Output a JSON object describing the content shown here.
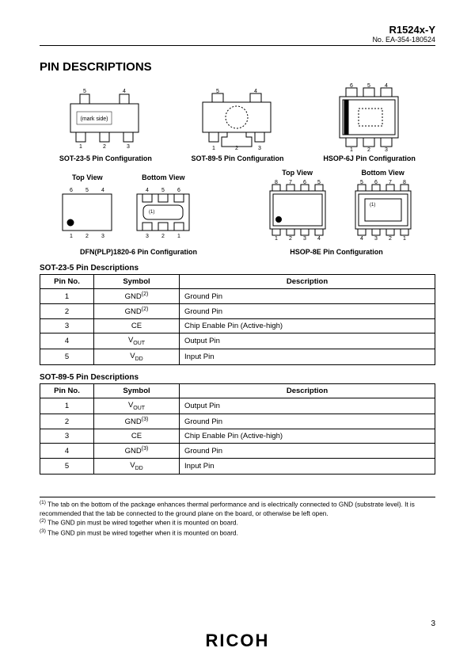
{
  "header": {
    "title": "R1524x-Y",
    "sub": "No. EA-354-180524"
  },
  "section_title": "PIN DESCRIPTIONS",
  "diag": {
    "sot235": {
      "caption": "SOT-23-5 Pin Configuration",
      "mark": "(mark side)",
      "top": [
        "5",
        "4"
      ],
      "bot": [
        "1",
        "2",
        "3"
      ]
    },
    "sot895": {
      "caption": "SOT-89-5 Pin Configuration",
      "top": [
        "5",
        "4"
      ],
      "bot": [
        "1",
        "2",
        "3"
      ]
    },
    "hsop6j": {
      "caption": "HSOP-6J Pin Configuration",
      "top": [
        "6",
        "5",
        "4"
      ],
      "bot": [
        "1",
        "2",
        "3"
      ]
    },
    "dfn": {
      "caption": "DFN(PLP)1820-6 Pin Configuration",
      "top_view": "Top View",
      "bottom_view": "Bottom View",
      "top_top": [
        "6",
        "5",
        "4"
      ],
      "top_bot": [
        "1",
        "2",
        "3"
      ],
      "btm_top": [
        "4",
        "5",
        "6"
      ],
      "btm_bot": [
        "3",
        "2",
        "1"
      ],
      "note": "(1)"
    },
    "hsop8e": {
      "caption": "HSOP-8E Pin Configuration",
      "top_view": "Top View",
      "bottom_view": "Bottom View",
      "top_top": [
        "8",
        "7",
        "6",
        "5"
      ],
      "top_bot": [
        "1",
        "2",
        "3",
        "4"
      ],
      "btm_top": [
        "5",
        "6",
        "7",
        "8"
      ],
      "btm_bot": [
        "4",
        "3",
        "2",
        "1"
      ],
      "note": "(1)"
    }
  },
  "table1": {
    "title": "SOT-23-5 Pin Descriptions",
    "headers": [
      "Pin No.",
      "Symbol",
      "Description"
    ],
    "rows": [
      {
        "n": "1",
        "sym": "GND",
        "sup": "(2)",
        "desc": "Ground Pin"
      },
      {
        "n": "2",
        "sym": "GND",
        "sup": "(2)",
        "desc": "Ground Pin"
      },
      {
        "n": "3",
        "sym": "CE",
        "sup": "",
        "desc": "Chip Enable Pin (Active-high)"
      },
      {
        "n": "4",
        "sym": "V",
        "sub": "OUT",
        "desc": "Output Pin"
      },
      {
        "n": "5",
        "sym": "V",
        "sub": "DD",
        "desc": "Input Pin"
      }
    ]
  },
  "table2": {
    "title": "SOT-89-5 Pin Descriptions",
    "headers": [
      "Pin No.",
      "Symbol",
      "Description"
    ],
    "rows": [
      {
        "n": "1",
        "sym": "V",
        "sub": "OUT",
        "desc": "Output Pin"
      },
      {
        "n": "2",
        "sym": "GND",
        "sup": "(3)",
        "desc": "Ground Pin"
      },
      {
        "n": "3",
        "sym": "CE",
        "sup": "",
        "desc": "Chip Enable Pin (Active-high)"
      },
      {
        "n": "4",
        "sym": "GND",
        "sup": "(3)",
        "desc": "Ground Pin"
      },
      {
        "n": "5",
        "sym": "V",
        "sub": "DD",
        "desc": "Input Pin"
      }
    ]
  },
  "footnotes": {
    "f1": {
      "num": "(1)",
      "text": "The tab on the bottom of the package enhances thermal performance and is electrically connected to GND (substrate level). It is recommended that the tab be connected to the ground plane on the board, or otherwise be left open."
    },
    "f2": {
      "num": "(2)",
      "text": "The GND pin must be wired together when it is mounted on board."
    },
    "f3": {
      "num": "(3)",
      "text": "The GND pin must be wired together when it is mounted on board."
    }
  },
  "page_num": "3",
  "brand": "RICOH",
  "style": {
    "col_widths": {
      "pin": "68px",
      "sym": "108px"
    },
    "stroke": "#000",
    "fill": "#fff"
  }
}
